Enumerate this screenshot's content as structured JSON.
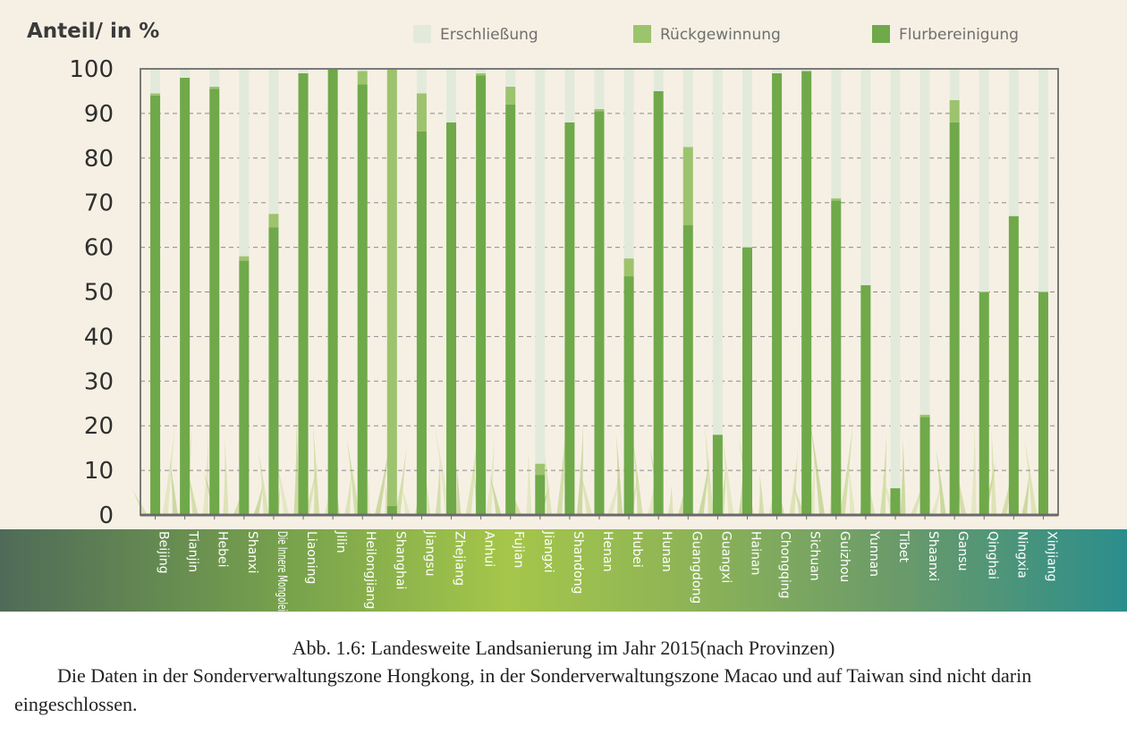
{
  "chart_data": {
    "type": "bar",
    "stacked": true,
    "ylabel": "Anteil/ in %",
    "ylim": [
      0,
      100
    ],
    "yticks": [
      0,
      10,
      20,
      30,
      40,
      50,
      60,
      70,
      80,
      90,
      100
    ],
    "grid": true,
    "legend_position": "top",
    "categories": [
      "Beijing",
      "Tianjin",
      "Hebei",
      "Shanxi",
      "Die Innere Mongolei",
      "Liaoning",
      "Jilin",
      "Heilongjiang",
      "Shanghai",
      "Jiangsu",
      "Zhejiang",
      "Anhui",
      "Fujian",
      "Jiangxi",
      "Shandong",
      "Henan",
      "Hubei",
      "Hunan",
      "Guangdong",
      "Guangxi",
      "Hainan",
      "Chongqing",
      "Sichuan",
      "Guizhou",
      "Yunnan",
      "Tibet",
      "Shaanxi",
      "Gansu",
      "Qinghai",
      "Ningxia",
      "Xinjiang"
    ],
    "series": [
      {
        "name": "Flurbereinigung",
        "color": "#6fa94a",
        "values": [
          94,
          98,
          95.5,
          57,
          64.5,
          99,
          100,
          96.5,
          2,
          86,
          88,
          98.5,
          92,
          9,
          88,
          90.5,
          53.5,
          95,
          65,
          18,
          60,
          99,
          99.5,
          70.5,
          51.5,
          6,
          22,
          88,
          50,
          67,
          50
        ]
      },
      {
        "name": "Rückgewinnung",
        "color": "#9dc36e",
        "values": [
          0.5,
          0,
          0.5,
          1,
          3,
          0,
          0,
          3,
          98,
          8.5,
          0,
          0.5,
          4,
          2.5,
          0,
          0.5,
          4,
          0,
          17.5,
          0,
          0,
          0,
          0,
          0.5,
          0,
          0,
          0.5,
          5,
          0,
          0,
          0
        ]
      },
      {
        "name": "Erschließung",
        "color": "#e2eadb",
        "values": [
          5.5,
          2,
          4,
          42,
          32.5,
          1,
          0,
          0.5,
          0,
          5.5,
          12,
          1,
          4,
          88.5,
          12,
          9,
          42.5,
          5,
          17.5,
          82,
          40,
          1,
          0.5,
          29,
          48.5,
          94,
          77.5,
          7,
          50,
          33,
          50
        ]
      }
    ]
  },
  "caption": {
    "title": "Abb. 1.6: Landesweite Landsanierung im Jahr 2015(nach Provinzen)",
    "note": "Die Daten in der Sonderverwaltungszone Hongkong, in der Sonderverwaltungszone Macao und auf Taiwan sind nicht darin eingeschlossen."
  }
}
